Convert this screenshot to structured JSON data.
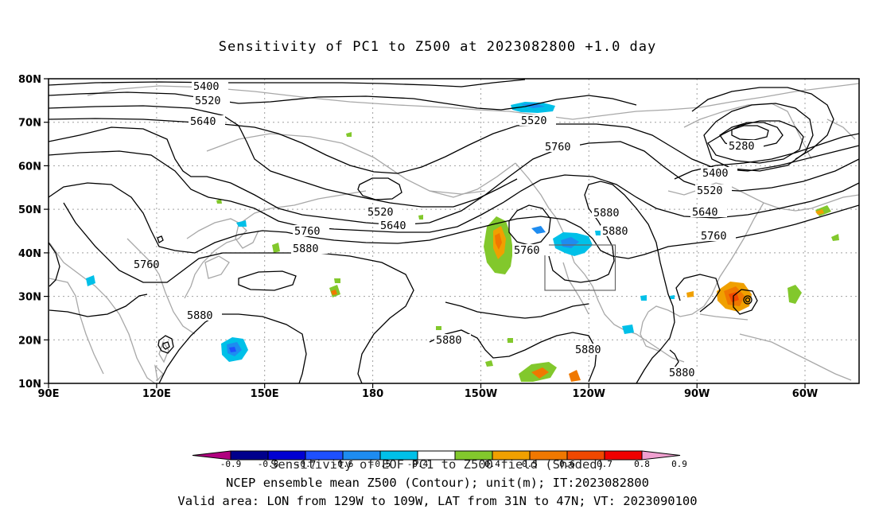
{
  "title": "Sensitivity of PC1 to Z500 at 2023082800 +1.0 day",
  "lat_labels": [
    "80N",
    "70N",
    "60N",
    "50N",
    "40N",
    "30N",
    "20N",
    "10N"
  ],
  "lon_labels": [
    "90E",
    "120E",
    "150E",
    "180",
    "150W",
    "120W",
    "90W",
    "60W"
  ],
  "contour_labels": {
    "c1": "5400",
    "c2": "5520",
    "c3": "5640",
    "c4": "5520",
    "c5": "5760",
    "c6": "5280",
    "c7": "5400",
    "c8": "5520",
    "c9": "5520",
    "c10": "5640",
    "c11": "5760",
    "c12": "5880",
    "c13": "5640",
    "c14": "5880",
    "c15": "5760",
    "c16": "5760",
    "c17": "5880",
    "c18": "5880",
    "c19": "5880",
    "c20": "5880",
    "c21": "5880"
  },
  "colorbar": {
    "labels": [
      "-0.9",
      "-0.8",
      "-0.7",
      "-0.6",
      "-0.5",
      "-0.4",
      "0.4",
      "0.5",
      "0.6",
      "0.7",
      "0.8",
      "0.9"
    ],
    "colors": {
      "below": "#b0007f",
      "neg": [
        "#00008c",
        "#0000d2",
        "#1e50ff",
        "#1e8cf0",
        "#00c0e8"
      ],
      "zero": "#ffffff",
      "pos": [
        "#82c82c",
        "#f0a000",
        "#f07800",
        "#f04800",
        "#f00000"
      ],
      "above": "#f0a0d0"
    }
  },
  "captions": {
    "line1": "Sensitivity of EOF PC1 to Z500 field (Shaded)",
    "line2": "NCEP ensemble mean Z500 (Contour); unit(m); IT:2023082800",
    "line3": "Valid area: LON from 129W to 109W, LAT from 31N to 47N; VT: 2023090100"
  }
}
